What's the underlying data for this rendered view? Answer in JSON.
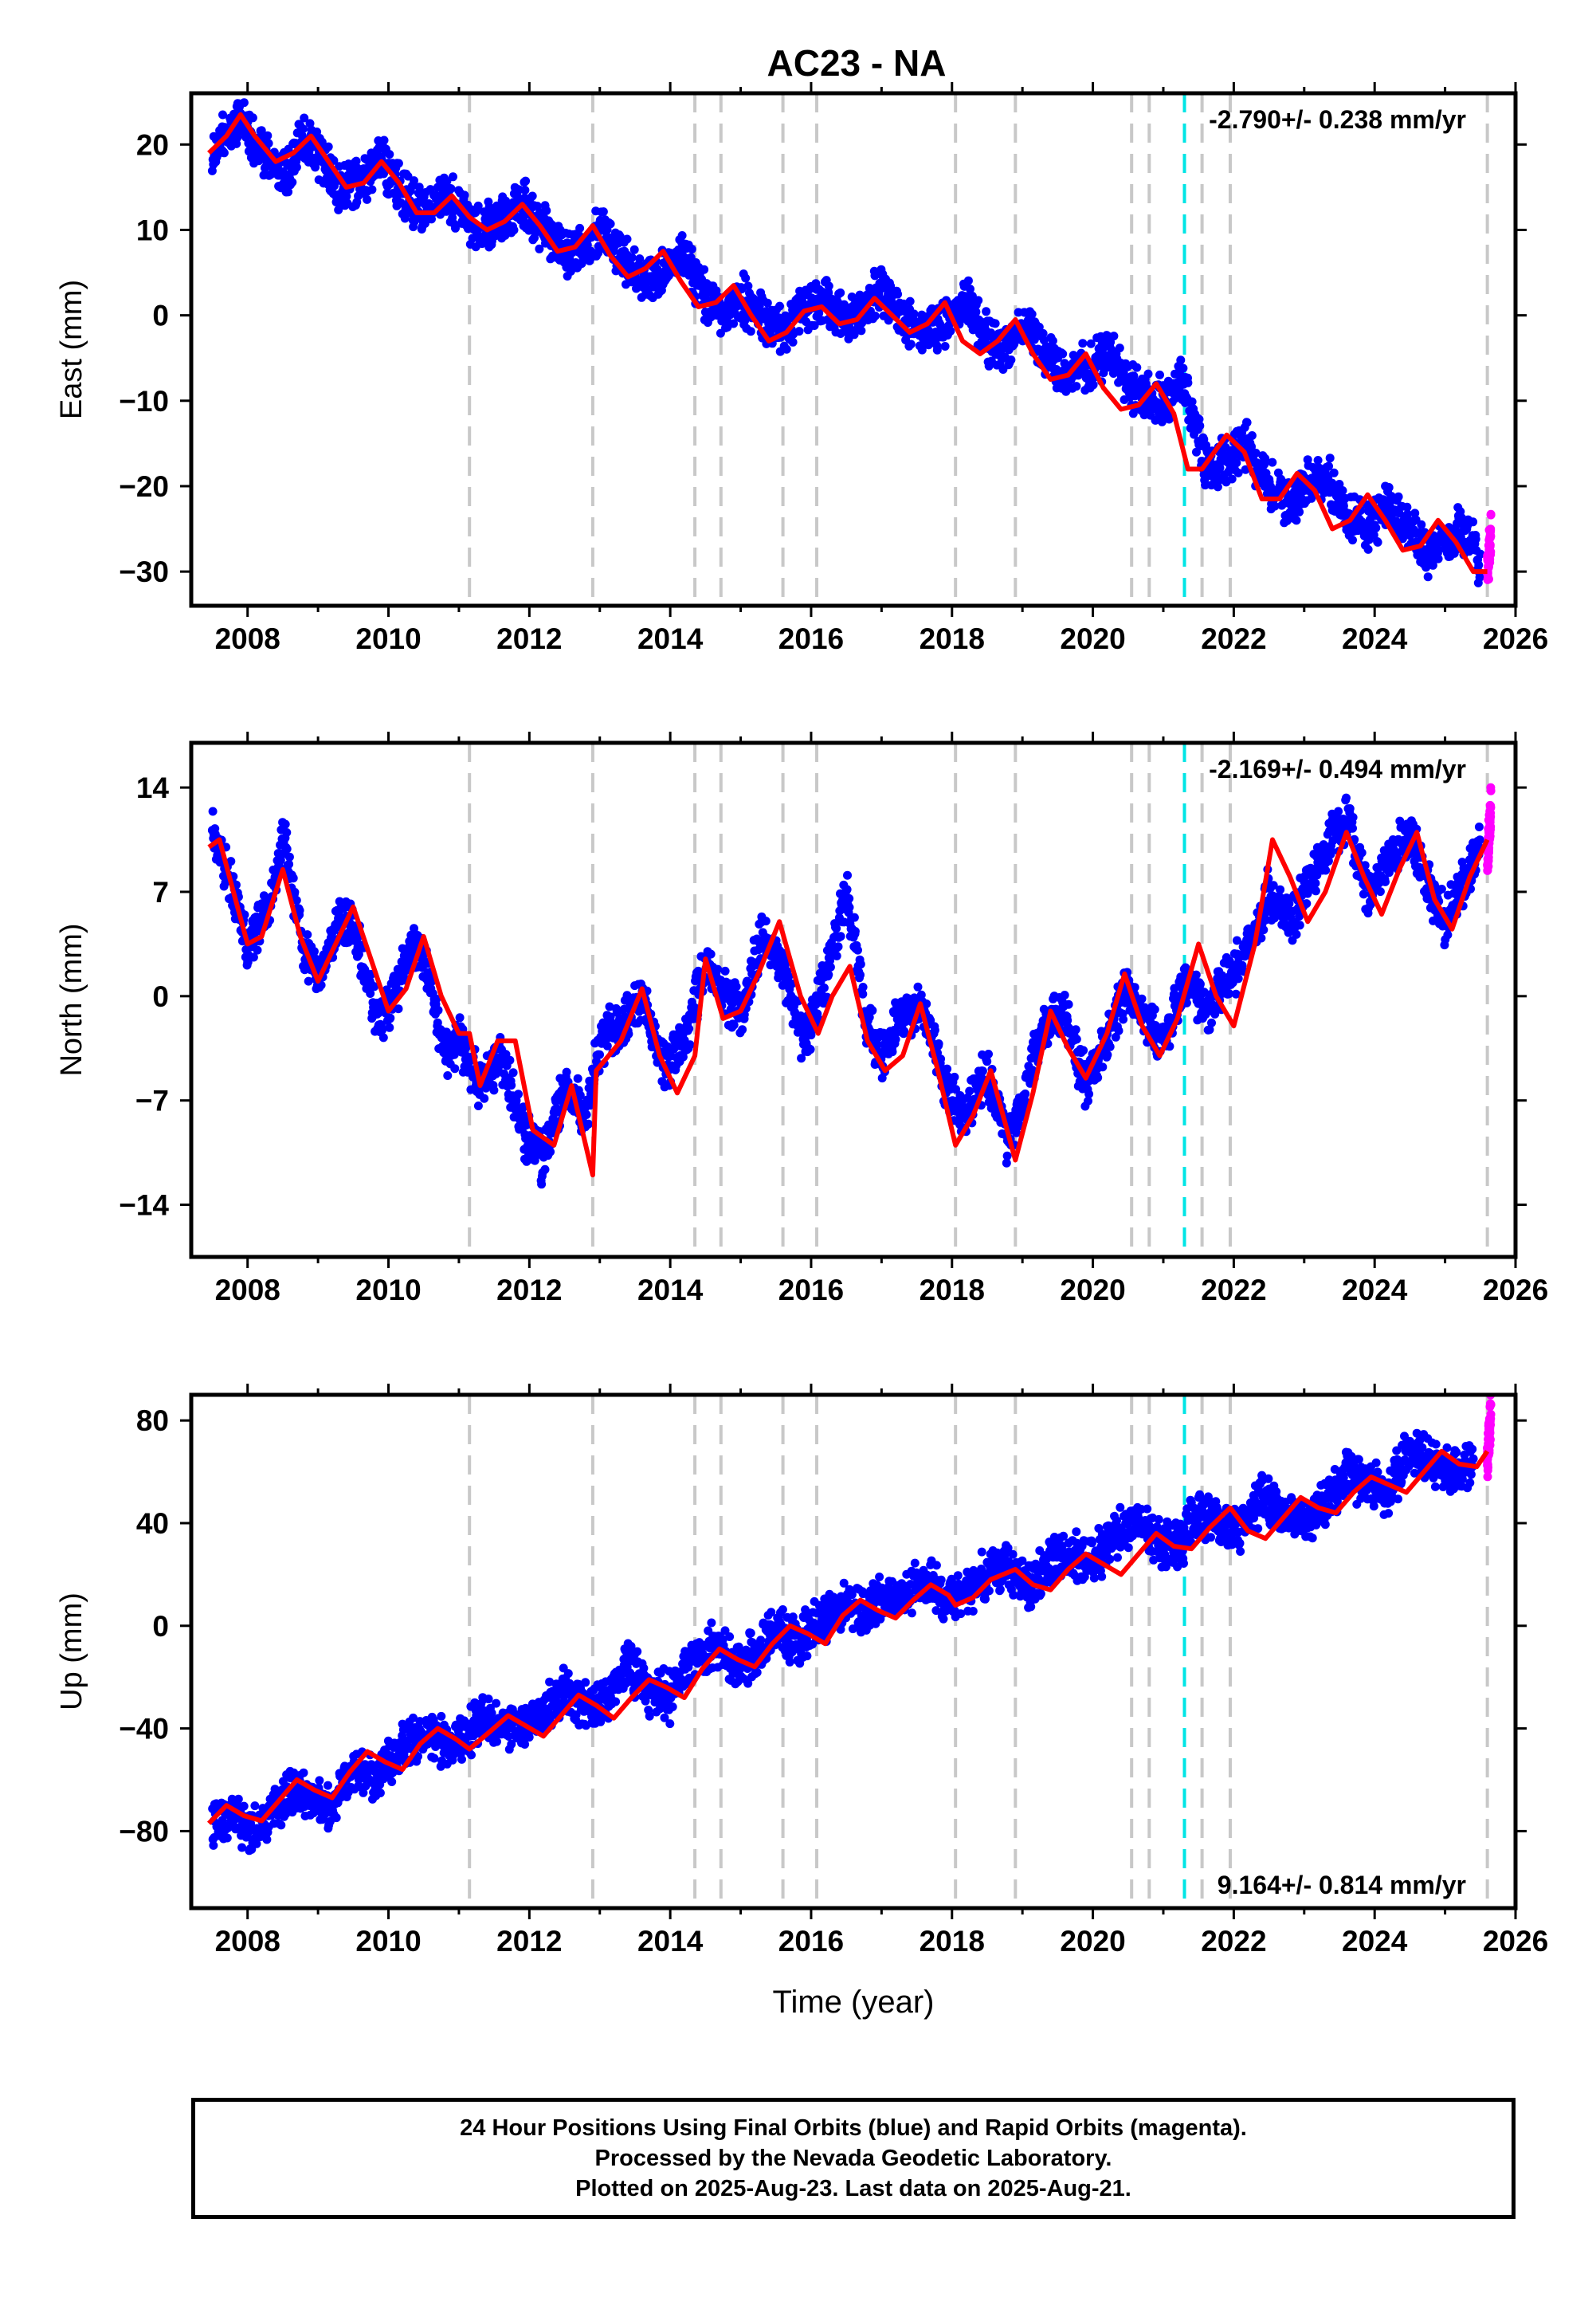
{
  "chart_data": {
    "type": "scatter",
    "title": "AC23 - NA",
    "xlabel": "Time (year)",
    "xlim": [
      2007.2,
      2026
    ],
    "xticks": [
      "2008",
      "2010",
      "2012",
      "2014",
      "2016",
      "2018",
      "2020",
      "2022",
      "2024",
      "2026"
    ],
    "offset_lines_gray": [
      2011.15,
      2012.9,
      2014.35,
      2014.72,
      2015.6,
      2016.08,
      2018.05,
      2018.9,
      2020.55,
      2020.8,
      2021.55,
      2021.95,
      2025.6
    ],
    "offset_line_cyan": 2021.3,
    "colors": {
      "final_orbits": "#0000ff",
      "rapid_orbits": "#ff00ff",
      "model": "#ff0000",
      "offset": "#c8c8c8",
      "equipment": "#00e5e5"
    },
    "panels": [
      {
        "ylabel": "East (mm)",
        "ylim": [
          -34,
          26
        ],
        "yticks": [
          -30,
          -20,
          -10,
          0,
          10,
          20
        ],
        "rate_text": "-2.790+/- 0.238 mm/yr",
        "rate_position": "top-right",
        "series": [
          {
            "name": "Final Orbits",
            "x": [
              2007.5,
              2007.7,
              2007.9,
              2008.2,
              2008.5,
              2008.8,
              2009.0,
              2009.3,
              2009.6,
              2009.9,
              2010.2,
              2010.5,
              2010.8,
              2011.0,
              2011.3,
              2011.6,
              2011.9,
              2012.2,
              2012.5,
              2012.8,
              2013.0,
              2013.3,
              2013.6,
              2013.9,
              2014.2,
              2014.5,
              2014.8,
              2015.0,
              2015.3,
              2015.6,
              2015.9,
              2016.2,
              2016.5,
              2016.8,
              2017.0,
              2017.3,
              2017.6,
              2017.9,
              2018.2,
              2018.5,
              2018.8,
              2019.0,
              2019.3,
              2019.6,
              2019.9,
              2020.2,
              2020.5,
              2020.8,
              2021.0,
              2021.3,
              2021.6,
              2021.9,
              2022.2,
              2022.5,
              2022.8,
              2023.0,
              2023.3,
              2023.6,
              2023.9,
              2024.2,
              2024.5,
              2024.8,
              2025.0,
              2025.3,
              2025.5
            ],
            "y": [
              19,
              21,
              23,
              19,
              16,
              21,
              19,
              15,
              16,
              18,
              14,
              12,
              14,
              13,
              10,
              11,
              13,
              10,
              7,
              8,
              10,
              7,
              4,
              5,
              7,
              2,
              0,
              2,
              0,
              -2,
              1,
              2,
              -1,
              1,
              3,
              0,
              -2,
              -1,
              2,
              -3,
              -4,
              -1,
              -4,
              -7,
              -6,
              -4,
              -8,
              -10,
              -10,
              -8,
              -18,
              -17,
              -15,
              -20,
              -22,
              -20,
              -19,
              -23,
              -25,
              -22,
              -25,
              -28,
              -26,
              -25,
              -29
            ]
          },
          {
            "name": "Rapid Orbits",
            "x": [
              2025.6,
              2025.63,
              2025.65
            ],
            "y": [
              -30,
              -27,
              -25
            ]
          }
        ],
        "model": {
          "x": [
            2007.45,
            2007.7,
            2007.9,
            2008.1,
            2008.4,
            2008.65,
            2008.9,
            2009.15,
            2009.4,
            2009.65,
            2009.9,
            2010.15,
            2010.4,
            2010.65,
            2010.9,
            2011.15,
            2011.4,
            2011.65,
            2011.9,
            2012.15,
            2012.4,
            2012.65,
            2012.9,
            2013.15,
            2013.4,
            2013.65,
            2013.9,
            2014.15,
            2014.4,
            2014.65,
            2014.9,
            2015.15,
            2015.4,
            2015.65,
            2015.9,
            2016.15,
            2016.4,
            2016.65,
            2016.9,
            2017.15,
            2017.4,
            2017.65,
            2017.9,
            2018.15,
            2018.4,
            2018.65,
            2018.9,
            2019.15,
            2019.4,
            2019.65,
            2019.9,
            2020.15,
            2020.4,
            2020.65,
            2020.9,
            2021.15,
            2021.35,
            2021.55,
            2021.9,
            2022.15,
            2022.4,
            2022.65,
            2022.9,
            2023.15,
            2023.4,
            2023.65,
            2023.9,
            2024.15,
            2024.4,
            2024.65,
            2024.9,
            2025.15,
            2025.4,
            2025.6
          ],
          "y": [
            19,
            21,
            23.5,
            21,
            18,
            19,
            21,
            18,
            15,
            15.5,
            18,
            15.5,
            12,
            12,
            14,
            11.5,
            10,
            11,
            13,
            10.5,
            7.5,
            8,
            10.5,
            7,
            4.5,
            5.5,
            7.5,
            4,
            1,
            1.5,
            3.5,
            0,
            -3,
            -2,
            0.5,
            1,
            -1,
            -0.5,
            2,
            0,
            -2,
            -1,
            1.5,
            -3,
            -4.5,
            -3,
            -0.5,
            -4.5,
            -7.5,
            -7,
            -4.5,
            -8.5,
            -11,
            -10.5,
            -8,
            -11.5,
            -18,
            -18,
            -14,
            -16,
            -21.5,
            -21.5,
            -18.5,
            -20.5,
            -25,
            -24,
            -21,
            -24,
            -27.5,
            -27,
            -24,
            -26.5,
            -30,
            -30
          ]
        }
      },
      {
        "ylabel": "North (mm)",
        "ylim": [
          -17.5,
          17
        ],
        "yticks": [
          -14,
          -7,
          0,
          7,
          14
        ],
        "rate_text": "-2.169+/- 0.494 mm/yr",
        "rate_position": "top-right",
        "series": [
          {
            "name": "Final Orbits",
            "x": [
              2007.5,
              2007.8,
              2008.0,
              2008.3,
              2008.5,
              2008.8,
              2009.0,
              2009.3,
              2009.5,
              2009.8,
              2010.0,
              2010.3,
              2010.5,
              2010.8,
              2011.0,
              2011.3,
              2011.6,
              2011.9,
              2012.2,
              2012.5,
              2012.8,
              2013.0,
              2013.3,
              2013.6,
              2013.9,
              2014.2,
              2014.5,
              2014.8,
              2015.0,
              2015.3,
              2015.6,
              2015.9,
              2016.2,
              2016.5,
              2016.8,
              2017.0,
              2017.3,
              2017.6,
              2017.9,
              2018.2,
              2018.5,
              2018.8,
              2019.0,
              2019.3,
              2019.6,
              2019.9,
              2020.2,
              2020.5,
              2020.8,
              2021.0,
              2021.3,
              2021.6,
              2021.9,
              2022.2,
              2022.5,
              2022.8,
              2023.0,
              2023.3,
              2023.6,
              2023.9,
              2024.2,
              2024.5,
              2024.8,
              2025.0,
              2025.3,
              2025.5
            ],
            "y": [
              11,
              7,
              3,
              6,
              11,
              3,
              1,
              5,
              5,
              -1,
              -1,
              3,
              3,
              -4,
              -3,
              -6,
              -4,
              -9,
              -11,
              -6,
              -8,
              -3,
              -2,
              0,
              -5,
              -3,
              2,
              0,
              -1,
              4,
              2,
              -3,
              1,
              7,
              -2,
              -4,
              -1,
              -1,
              -6,
              -8,
              -5,
              -10,
              -7,
              -2,
              -1,
              -6,
              -3,
              1,
              -2,
              -3,
              1,
              -1,
              1,
              3,
              7,
              5,
              7,
              10,
              12,
              7,
              9,
              11,
              7,
              5,
              8,
              10
            ]
          },
          {
            "name": "Rapid Orbits",
            "x": [
              2025.6,
              2025.63,
              2025.65
            ],
            "y": [
              9,
              11,
              13
            ]
          }
        ],
        "model": {
          "x": [
            2007.45,
            2007.6,
            2007.8,
            2008.0,
            2008.2,
            2008.5,
            2008.75,
            2009.0,
            2009.25,
            2009.5,
            2009.75,
            2010.0,
            2010.25,
            2010.5,
            2010.75,
            2011.0,
            2011.15,
            2011.3,
            2011.55,
            2011.8,
            2012.05,
            2012.35,
            2012.6,
            2012.9,
            2012.95,
            2013.3,
            2013.6,
            2013.85,
            2014.1,
            2014.35,
            2014.5,
            2014.75,
            2015.0,
            2015.25,
            2015.55,
            2015.85,
            2016.1,
            2016.3,
            2016.55,
            2016.8,
            2017.05,
            2017.3,
            2017.55,
            2017.8,
            2018.05,
            2018.3,
            2018.55,
            2018.9,
            2019.15,
            2019.4,
            2019.65,
            2019.9,
            2020.2,
            2020.45,
            2020.7,
            2020.95,
            2021.2,
            2021.5,
            2021.75,
            2022.0,
            2022.3,
            2022.55,
            2022.8,
            2023.05,
            2023.3,
            2023.6,
            2023.85,
            2024.1,
            2024.35,
            2024.6,
            2024.85,
            2025.1,
            2025.35,
            2025.6
          ],
          "y": [
            10,
            10.5,
            7,
            3.5,
            4,
            8.5,
            4,
            1,
            3.5,
            6,
            2.5,
            -1,
            0.5,
            4,
            0,
            -2.5,
            -2.5,
            -6,
            -3,
            -3,
            -9,
            -10,
            -6,
            -12,
            -5,
            -3,
            0.5,
            -4,
            -6.5,
            -4,
            2.5,
            -1.5,
            -1,
            1.5,
            5,
            0,
            -2.5,
            0,
            2,
            -3,
            -5,
            -4,
            -0.5,
            -5,
            -10,
            -8,
            -5,
            -11,
            -6.5,
            -1,
            -3.5,
            -5.5,
            -2.5,
            1.5,
            -2,
            -4,
            -1.5,
            3.5,
            0,
            -2,
            3.5,
            10.5,
            8,
            5,
            7,
            11,
            8,
            5.5,
            8.5,
            11,
            6.5,
            4.5,
            8,
            10.5
          ]
        }
      },
      {
        "ylabel": "Up (mm)",
        "ylim": [
          -110,
          90
        ],
        "yticks": [
          -80,
          -40,
          0,
          40,
          80
        ],
        "rate_text": "9.164+/- 0.814 mm/yr",
        "rate_position": "bottom-right",
        "series": [
          {
            "name": "Final Orbits",
            "x": [
              2007.5,
              2007.8,
              2008.0,
              2008.3,
              2008.6,
              2008.9,
              2009.2,
              2009.5,
              2009.8,
              2010.1,
              2010.4,
              2010.7,
              2011.0,
              2011.3,
              2011.6,
              2011.9,
              2012.2,
              2012.5,
              2012.8,
              2013.1,
              2013.4,
              2013.7,
              2014.0,
              2014.3,
              2014.6,
              2014.9,
              2015.2,
              2015.5,
              2015.8,
              2016.1,
              2016.4,
              2016.7,
              2017.0,
              2017.3,
              2017.6,
              2017.9,
              2018.2,
              2018.5,
              2018.8,
              2019.1,
              2019.4,
              2019.7,
              2020.0,
              2020.3,
              2020.6,
              2020.9,
              2021.2,
              2021.5,
              2021.8,
              2022.1,
              2022.4,
              2022.7,
              2023.0,
              2023.3,
              2023.6,
              2023.9,
              2024.2,
              2024.5,
              2024.8,
              2025.1,
              2025.4
            ],
            "y": [
              -80,
              -72,
              -82,
              -76,
              -64,
              -68,
              -70,
              -55,
              -60,
              -52,
              -42,
              -45,
              -46,
              -36,
              -40,
              -40,
              -35,
              -25,
              -32,
              -28,
              -15,
              -25,
              -28,
              -12,
              -8,
              -15,
              -12,
              -2,
              -5,
              0,
              8,
              5,
              10,
              12,
              18,
              10,
              12,
              20,
              22,
              15,
              25,
              28,
              25,
              35,
              40,
              35,
              30,
              45,
              40,
              38,
              50,
              45,
              40,
              48,
              60,
              55,
              52,
              68,
              65,
              60,
              65
            ]
          },
          {
            "name": "Rapid Orbits",
            "x": [
              2025.6,
              2025.63,
              2025.65
            ],
            "y": [
              66,
              74,
              82
            ]
          }
        ],
        "model": {
          "x": [
            2007.45,
            2007.7,
            2007.95,
            2008.2,
            2008.45,
            2008.7,
            2008.95,
            2009.2,
            2009.45,
            2009.7,
            2009.95,
            2010.2,
            2010.45,
            2010.7,
            2010.95,
            2011.15,
            2011.45,
            2011.7,
            2011.95,
            2012.2,
            2012.45,
            2012.7,
            2012.95,
            2013.2,
            2013.45,
            2013.7,
            2013.95,
            2014.2,
            2014.45,
            2014.7,
            2014.95,
            2015.2,
            2015.45,
            2015.7,
            2015.95,
            2016.2,
            2016.45,
            2016.7,
            2016.95,
            2017.2,
            2017.45,
            2017.7,
            2017.95,
            2018.05,
            2018.3,
            2018.55,
            2018.9,
            2019.15,
            2019.4,
            2019.65,
            2019.9,
            2020.15,
            2020.4,
            2020.65,
            2020.9,
            2021.15,
            2021.4,
            2021.65,
            2021.95,
            2022.2,
            2022.45,
            2022.7,
            2022.95,
            2023.2,
            2023.45,
            2023.7,
            2023.95,
            2024.2,
            2024.45,
            2024.7,
            2024.95,
            2025.2,
            2025.45,
            2025.6
          ],
          "y": [
            -77,
            -70,
            -74,
            -76,
            -68,
            -60,
            -64,
            -67,
            -57,
            -49,
            -53,
            -56,
            -46,
            -40,
            -44,
            -48,
            -41,
            -35,
            -39,
            -43,
            -35,
            -27,
            -31,
            -36,
            -28,
            -21,
            -24,
            -28,
            -17,
            -9,
            -13,
            -16,
            -7,
            0,
            -3,
            -7,
            4,
            10,
            6,
            3,
            10,
            16,
            12,
            8,
            11,
            18,
            22,
            16,
            14,
            22,
            28,
            24,
            20,
            28,
            36,
            31,
            30,
            38,
            46,
            37,
            34,
            42,
            50,
            46,
            44,
            52,
            58,
            55,
            52,
            60,
            68,
            63,
            62,
            68
          ]
        }
      }
    ]
  },
  "footer": {
    "line1": "24 Hour Positions Using Final Orbits (blue) and Rapid Orbits (magenta).",
    "line2": "Processed by the Nevada Geodetic Laboratory.",
    "line3": "Plotted on 2025-Aug-23. Last data on 2025-Aug-21."
  }
}
